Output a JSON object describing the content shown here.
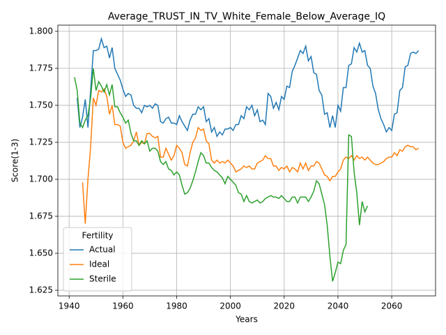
{
  "chart_data": {
    "type": "line",
    "title": "Average_TRUST_IN_TV_White_Female_Below_Average_IQ",
    "xlabel": "Years",
    "ylabel": "Score(1-3)",
    "legend_title": "Fertility",
    "legend": "lower left",
    "grid": true,
    "xlim": [
      1935.8,
      2076.3
    ],
    "xticks": [
      1940,
      1960,
      1980,
      2000,
      2020,
      2040,
      2060
    ],
    "ylim": [
      1.6212,
      1.8042
    ],
    "yticks": [
      1.625,
      {
        "value": 1.65,
        "label": "1.650"
      },
      1.675,
      {
        "value": 1.7,
        "label": "1.700"
      },
      1.725,
      {
        "value": 1.75,
        "label": "1.750"
      },
      1.775,
      {
        "value": 1.8,
        "label": "1.800"
      }
    ],
    "x": [
      1942,
      1943,
      1944,
      1945,
      1946,
      1947,
      1948,
      1949,
      1950,
      1951,
      1952,
      1953,
      1954,
      1955,
      1956,
      1957,
      1958,
      1959,
      1960,
      1961,
      1962,
      1963,
      1964,
      1965,
      1966,
      1967,
      1968,
      1969,
      1970,
      1971,
      1972,
      1973,
      1974,
      1975,
      1976,
      1977,
      1978,
      1979,
      1980,
      1981,
      1982,
      1983,
      1984,
      1985,
      1986,
      1987,
      1988,
      1989,
      1990,
      1991,
      1992,
      1993,
      1994,
      1995,
      1996,
      1997,
      1998,
      1999,
      2000,
      2001,
      2002,
      2003,
      2004,
      2005,
      2006,
      2007,
      2008,
      2009,
      2010,
      2011,
      2012,
      2013,
      2014,
      2015,
      2016,
      2017,
      2018,
      2019,
      2020,
      2021,
      2022,
      2023,
      2024,
      2025,
      2026,
      2027,
      2028,
      2029,
      2030,
      2031,
      2032,
      2033,
      2034,
      2035,
      2036,
      2037,
      2038,
      2039,
      2040,
      2041,
      2042,
      2043,
      2044,
      2045,
      2046,
      2047,
      2048,
      2049,
      2050,
      2051,
      2052,
      2053,
      2054,
      2055,
      2056,
      2057,
      2058,
      2059,
      2060,
      2061,
      2062,
      2063,
      2064,
      2065,
      2066,
      2067,
      2068,
      2069,
      2070
    ],
    "series": [
      {
        "name": "Actual",
        "color": "#1f77b4",
        "values": [
          null,
          1.755,
          1.735,
          1.742,
          1.754,
          1.735,
          1.76,
          1.787,
          1.787,
          1.788,
          1.795,
          1.789,
          1.79,
          1.782,
          1.789,
          1.775,
          1.771,
          1.767,
          1.761,
          1.756,
          1.758,
          1.757,
          1.75,
          1.748,
          1.748,
          1.745,
          1.75,
          1.749,
          1.75,
          1.748,
          1.751,
          1.75,
          1.739,
          1.738,
          1.741,
          1.742,
          1.738,
          1.738,
          1.737,
          1.743,
          1.739,
          1.736,
          1.733,
          1.74,
          1.744,
          1.744,
          1.749,
          1.747,
          1.749,
          1.739,
          1.741,
          1.732,
          1.735,
          1.729,
          1.732,
          1.73,
          1.734,
          1.734,
          1.735,
          1.733,
          1.737,
          1.737,
          1.743,
          1.741,
          1.749,
          1.747,
          1.75,
          1.743,
          1.747,
          1.739,
          1.74,
          1.737,
          1.758,
          1.756,
          1.748,
          1.752,
          1.747,
          1.756,
          1.754,
          1.763,
          1.762,
          1.773,
          1.777,
          1.782,
          1.787,
          1.785,
          1.79,
          1.78,
          1.783,
          1.772,
          1.771,
          1.76,
          1.757,
          1.744,
          1.745,
          1.735,
          1.743,
          1.735,
          1.75,
          1.746,
          1.762,
          1.762,
          1.777,
          1.778,
          1.789,
          1.786,
          1.792,
          1.786,
          1.787,
          1.777,
          1.775,
          1.763,
          1.758,
          1.747,
          1.741,
          1.737,
          1.732,
          1.735,
          1.733,
          1.744,
          1.745,
          1.76,
          1.762,
          1.776,
          1.777,
          1.785,
          1.786,
          1.785,
          1.787
        ]
      },
      {
        "name": "Ideal",
        "color": "#ff7f0e",
        "values": [
          null,
          null,
          null,
          1.698,
          1.67,
          1.7,
          1.722,
          1.755,
          1.75,
          1.76,
          1.759,
          1.761,
          1.756,
          1.744,
          1.75,
          1.737,
          1.737,
          1.736,
          1.725,
          1.721,
          1.722,
          1.723,
          1.726,
          1.732,
          1.723,
          1.725,
          1.724,
          1.731,
          1.731,
          1.729,
          1.728,
          1.729,
          1.715,
          1.715,
          1.721,
          1.717,
          1.713,
          1.716,
          1.723,
          1.721,
          1.718,
          1.71,
          1.709,
          1.718,
          1.725,
          1.728,
          1.735,
          1.733,
          1.734,
          1.726,
          1.724,
          1.713,
          1.711,
          1.713,
          1.711,
          1.712,
          1.711,
          1.713,
          1.711,
          1.709,
          1.705,
          1.706,
          1.707,
          1.709,
          1.708,
          1.709,
          1.707,
          1.707,
          1.711,
          1.712,
          1.713,
          1.716,
          1.714,
          1.714,
          1.709,
          1.709,
          1.706,
          1.708,
          1.707,
          1.709,
          1.705,
          1.708,
          1.707,
          1.705,
          1.711,
          1.707,
          1.711,
          1.706,
          1.709,
          1.709,
          1.712,
          1.711,
          1.707,
          1.703,
          1.702,
          1.699,
          1.702,
          1.702,
          1.705,
          1.707,
          1.713,
          1.715,
          1.714,
          1.716,
          1.713,
          1.716,
          1.714,
          1.715,
          1.713,
          1.715,
          1.713,
          1.711,
          1.71,
          1.71,
          1.711,
          1.712,
          1.714,
          1.715,
          1.715,
          1.718,
          1.716,
          1.72,
          1.719,
          1.722,
          1.723,
          1.722,
          1.722,
          1.72,
          1.721
        ]
      },
      {
        "name": "Sterile",
        "color": "#2ca02c",
        "values": [
          1.769,
          1.76,
          1.738,
          1.735,
          1.74,
          1.743,
          1.755,
          1.775,
          1.76,
          1.766,
          1.763,
          1.759,
          1.764,
          1.757,
          1.764,
          1.749,
          1.749,
          1.745,
          1.742,
          1.738,
          1.74,
          1.731,
          1.726,
          1.726,
          1.723,
          1.726,
          1.724,
          1.726,
          1.719,
          1.721,
          1.721,
          1.719,
          1.712,
          1.71,
          1.712,
          1.707,
          1.706,
          1.703,
          1.705,
          1.703,
          1.696,
          1.69,
          1.691,
          1.694,
          1.699,
          1.705,
          1.712,
          1.718,
          1.716,
          1.711,
          1.711,
          1.708,
          1.706,
          1.705,
          1.703,
          1.701,
          1.697,
          1.702,
          1.7,
          1.698,
          1.696,
          1.691,
          1.69,
          1.685,
          1.689,
          1.685,
          1.684,
          1.685,
          1.686,
          1.684,
          1.685,
          1.687,
          1.688,
          1.689,
          1.688,
          1.688,
          1.687,
          1.689,
          1.687,
          1.685,
          1.685,
          1.688,
          1.688,
          1.684,
          1.688,
          1.688,
          1.688,
          1.685,
          1.688,
          1.692,
          1.699,
          1.697,
          1.69,
          1.683,
          1.669,
          1.648,
          1.631,
          1.637,
          1.644,
          1.643,
          1.652,
          1.656,
          1.73,
          1.729,
          1.705,
          1.691,
          1.669,
          1.685,
          1.678,
          1.682,
          null,
          null,
          null,
          null,
          null,
          null,
          null,
          null,
          null,
          null,
          null,
          null,
          null,
          null,
          null,
          null,
          null,
          null,
          null
        ]
      }
    ]
  }
}
